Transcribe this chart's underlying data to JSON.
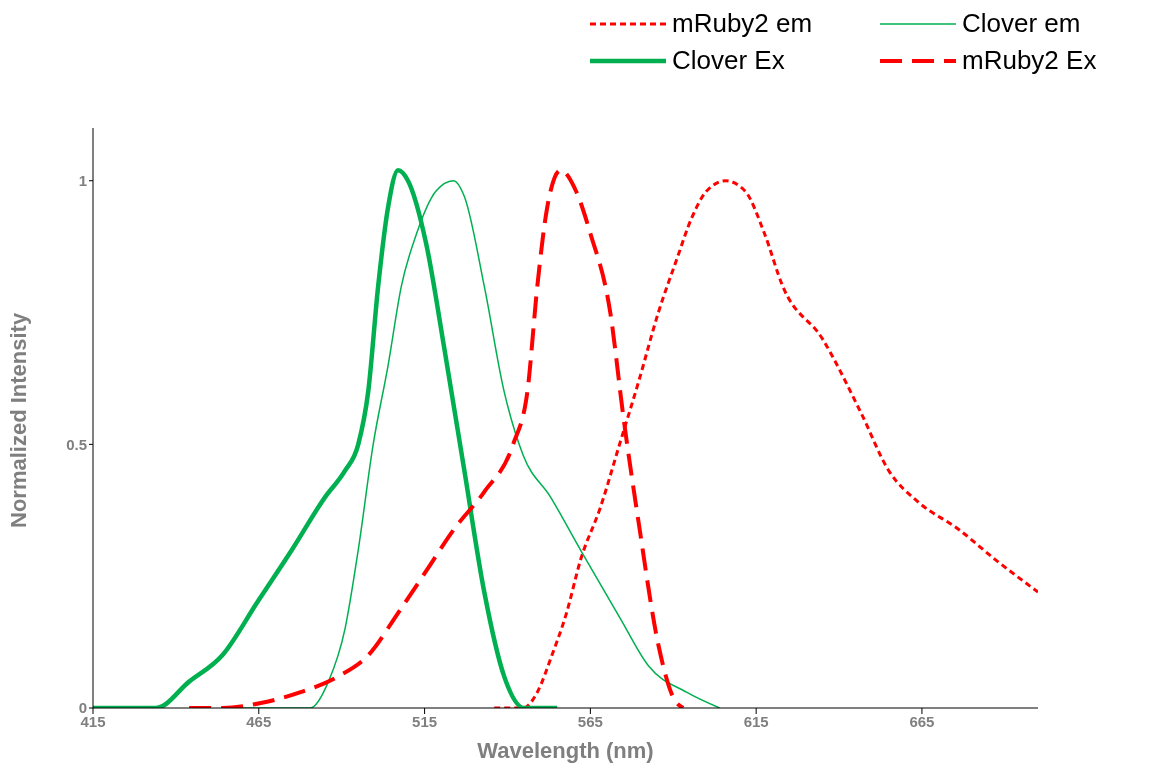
{
  "chart_data": {
    "type": "line",
    "xlabel": "Wavelength (nm)",
    "ylabel": "Normalized Intensity",
    "xlim": [
      415,
      700
    ],
    "xticks": [
      415,
      465,
      515,
      565,
      615,
      665
    ],
    "ylim": [
      0,
      1.1
    ],
    "yticks": [
      0,
      0.5,
      1
    ],
    "grid": false,
    "legend": "top right",
    "marker": "none",
    "series": [
      {
        "name": "mRuby2 em",
        "color": "#ff0000",
        "line_style": "dotted",
        "x": [
          536,
          544.7,
          549,
          553.4,
          557.8,
          562,
          568,
          573.8,
          579.6,
          585.5,
          591,
          595.6,
          600,
          605.8,
          611.7,
          617.5,
          623,
          635,
          646.6,
          655,
          664,
          675.8,
          687.4,
          700
        ],
        "values": [
          0,
          0,
          0.03,
          0.1,
          0.18,
          0.28,
          0.38,
          0.5,
          0.62,
          0.75,
          0.85,
          0.93,
          0.98,
          1.0,
          0.98,
          0.9,
          0.8,
          0.7,
          0.56,
          0.45,
          0.39,
          0.34,
          0.28,
          0.22
        ]
      },
      {
        "name": "Clover em",
        "color": "#00b050",
        "line_style": "solid",
        "x": [
          460,
          480.5,
          486,
          491,
          495,
          499.5,
          504,
          508,
          512.6,
          518.4,
          523.7,
          527,
          533,
          539,
          544.7,
          553,
          562,
          574,
          582.5,
          594,
          604
        ],
        "values": [
          0,
          0,
          0.05,
          0.15,
          0.3,
          0.5,
          0.65,
          0.8,
          0.9,
          0.98,
          1.0,
          0.97,
          0.8,
          0.6,
          0.48,
          0.4,
          0.3,
          0.17,
          0.08,
          0.03,
          0
        ]
      },
      {
        "name": "Clover Ex",
        "color": "#00b050",
        "line_style": "solid",
        "x": [
          415,
          434,
          444,
          454,
          464.5,
          475,
          485,
          491,
          495,
          498,
          501,
          504,
          507,
          510,
          515.5,
          521,
          527,
          533,
          539,
          545,
          555
        ],
        "values": [
          0,
          0,
          0.05,
          0.1,
          0.2,
          0.3,
          0.4,
          0.45,
          0.5,
          0.6,
          0.8,
          0.95,
          1.02,
          1.0,
          0.88,
          0.68,
          0.45,
          0.22,
          0.06,
          0,
          0
        ]
      },
      {
        "name": "mRuby2 Ex",
        "color": "#ff0000",
        "line_style": "dashed",
        "x": [
          444,
          454,
          466,
          477.6,
          489,
          498,
          507,
          515.5,
          524,
          533,
          541.7,
          546,
          549,
          552,
          556,
          560.7,
          565,
          571,
          575,
          579.6,
          585.5,
          590,
          593
        ],
        "values": [
          0,
          0,
          0.01,
          0.03,
          0.06,
          0.1,
          0.18,
          0.26,
          0.34,
          0.41,
          0.5,
          0.6,
          0.8,
          0.95,
          1.02,
          0.98,
          0.9,
          0.75,
          0.55,
          0.35,
          0.12,
          0.02,
          0
        ]
      }
    ]
  }
}
